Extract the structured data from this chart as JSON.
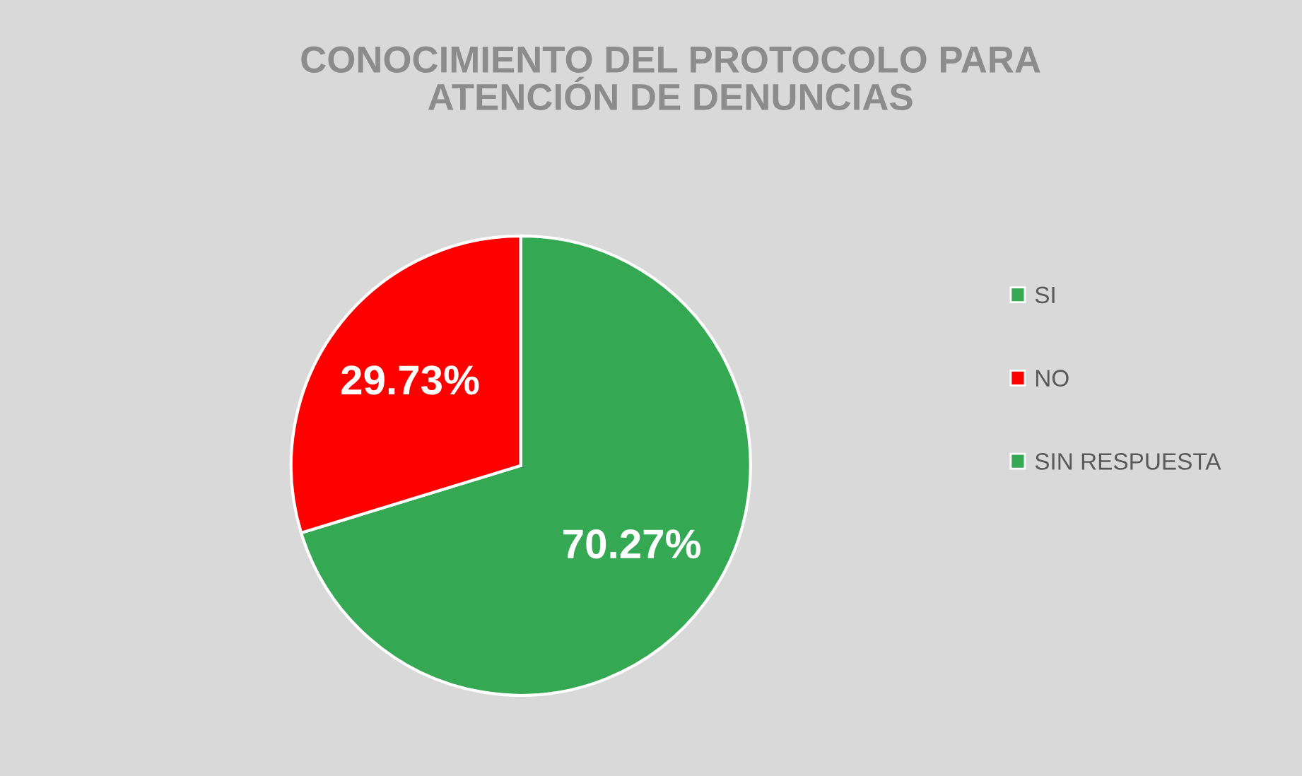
{
  "chart_data": {
    "type": "pie",
    "title": "CONOCIMIENTO DEL PROTOCOLO PARA\nATENCIÓN DE DENUNCIAS",
    "categories": [
      "SI",
      "NO",
      "SIN RESPUESTA"
    ],
    "values": [
      70.27,
      29.73,
      0
    ],
    "colors": [
      "#35a853",
      "#ff0000",
      "#35a853"
    ],
    "value_labels": [
      "70.27%",
      "29.73%",
      null
    ],
    "legend": "right"
  }
}
